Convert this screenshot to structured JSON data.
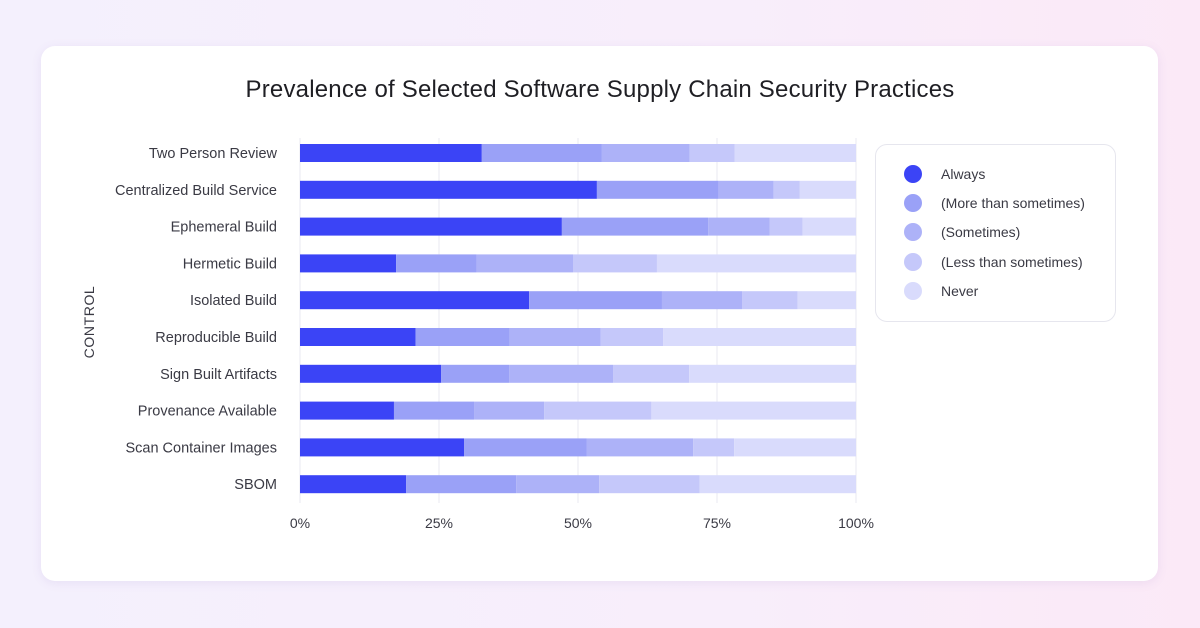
{
  "chart_data": {
    "type": "bar",
    "orientation": "horizontal",
    "stacked": true,
    "title": "Prevalence of Selected Software Supply Chain Security Practices",
    "xlabel": "",
    "ylabel": "CONTROL",
    "xlim": [
      0,
      100
    ],
    "x_ticks": [
      "0%",
      "25%",
      "50%",
      "75%",
      "100%"
    ],
    "grid": true,
    "legend_position": "right",
    "categories": [
      "Two Person Review",
      "Centralized Build Service",
      "Ephemeral Build",
      "Hermetic Build",
      "Isolated Build",
      "Reproducible Build",
      "Sign Built Artifacts",
      "Provenance Available",
      "Scan Container Images",
      "SBOM"
    ],
    "series": [
      {
        "name": "Always",
        "color": "#3b44f6",
        "values": [
          32.7,
          53.4,
          47.1,
          17.3,
          41.2,
          20.8,
          25.4,
          16.9,
          29.5,
          19.1
        ]
      },
      {
        "name": "(More than sometimes)",
        "color": "#9aa1f7",
        "values": [
          21.6,
          21.9,
          26.3,
          14.5,
          23.9,
          16.9,
          12.2,
          14.4,
          22.1,
          19.8
        ]
      },
      {
        "name": "(Sometimes)",
        "color": "#adb2f8",
        "values": [
          15.8,
          9.9,
          11.1,
          17.3,
          14.4,
          16.4,
          18.7,
          12.6,
          19.1,
          14.9
        ]
      },
      {
        "name": "(Less than sometimes)",
        "color": "#c5c8fa",
        "values": [
          8.1,
          4.7,
          5.9,
          15.1,
          10.0,
          11.2,
          13.7,
          19.3,
          7.4,
          18.1
        ]
      },
      {
        "name": "Never",
        "color": "#d9dbfc",
        "values": [
          21.8,
          10.1,
          9.6,
          35.8,
          10.5,
          34.7,
          30.0,
          36.8,
          21.9,
          28.1
        ]
      }
    ]
  }
}
